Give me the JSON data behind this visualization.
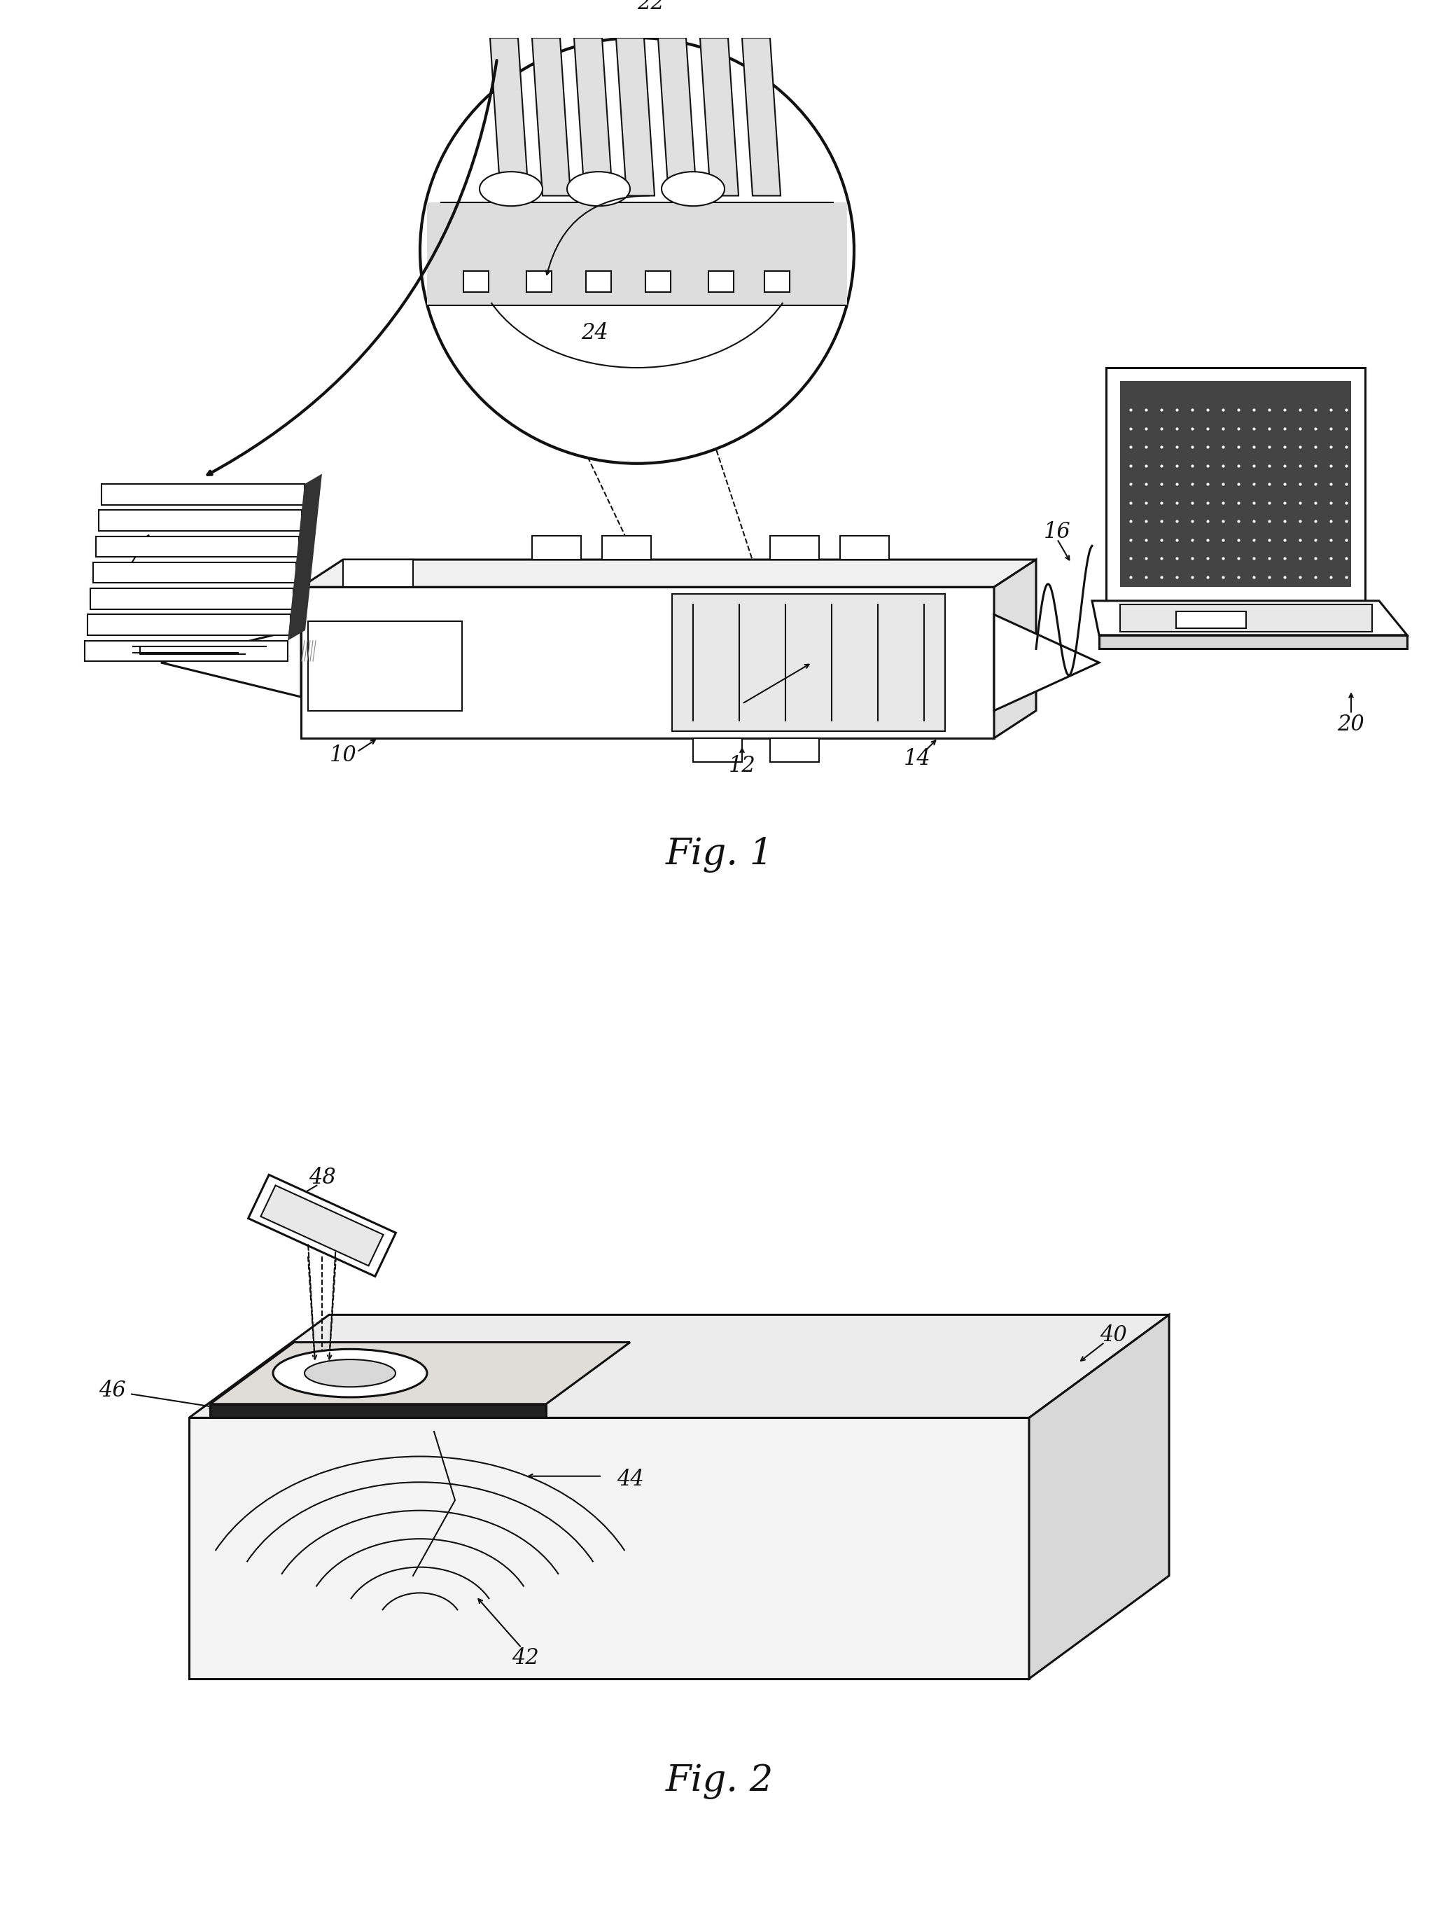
{
  "fig1_caption": "Fig. 1",
  "fig2_caption": "Fig. 2",
  "background_color": "#ffffff",
  "line_color": "#111111",
  "label_color": "#111111",
  "font_size_caption": 38,
  "font_size_label": 22
}
